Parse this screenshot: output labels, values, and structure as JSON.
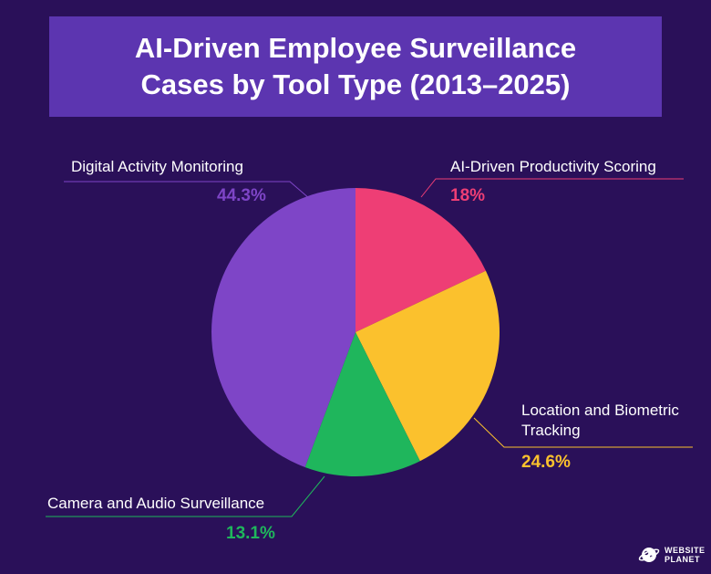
{
  "chart_data": {
    "type": "pie",
    "title_lines": [
      "AI-Driven Employee Surveillance",
      "Cases by Tool Type (2013–2025)"
    ],
    "slices": [
      {
        "label": "AI-Driven Productivity Scoring",
        "label_lines": [
          "AI-Driven Productivity Scoring"
        ],
        "value": 18,
        "value_label": "18%",
        "color": "#ee3e75"
      },
      {
        "label": "Location and Biometric Tracking",
        "label_lines": [
          "Location and Biometric",
          "Tracking"
        ],
        "value": 24.6,
        "value_label": "24.6%",
        "color": "#fbc12d"
      },
      {
        "label": "Camera and Audio Surveillance",
        "label_lines": [
          "Camera and Audio Surveillance"
        ],
        "value": 13.1,
        "value_label": "13.1%",
        "color": "#1fb65c"
      },
      {
        "label": "Digital Activity Monitoring",
        "label_lines": [
          "Digital Activity Monitoring"
        ],
        "value": 44.3,
        "value_label": "44.3%",
        "color": "#7e45c7"
      }
    ]
  },
  "colors": {
    "background": "#2a1059",
    "title_box": "#5c35b0"
  },
  "logo": {
    "line1": "WEBSITE",
    "line2": "PLANET",
    "icon": "planet-icon"
  }
}
